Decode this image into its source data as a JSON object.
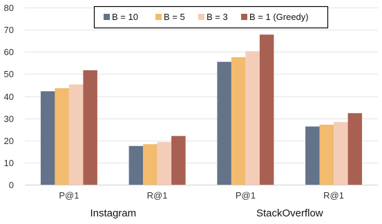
{
  "chart_data": {
    "type": "bar",
    "categories": [
      "P@1",
      "R@1",
      "P@1",
      "R@1"
    ],
    "groups": [
      {
        "label": "Instagram",
        "categories": [
          "P@1",
          "R@1"
        ]
      },
      {
        "label": "StackOverflow",
        "categories": [
          "P@1",
          "R@1"
        ]
      }
    ],
    "series": [
      {
        "name": "B = 10",
        "color": "#637389",
        "values": [
          42.2,
          17.5,
          55.5,
          26.3
        ]
      },
      {
        "name": "B = 5",
        "color": "#f2bb6e",
        "values": [
          43.6,
          18.3,
          57.6,
          27.1
        ]
      },
      {
        "name": "B = 3",
        "color": "#f4cdb9",
        "values": [
          45.3,
          19.3,
          60.3,
          28.3
        ]
      },
      {
        "name": "B = 1 (Greedy)",
        "color": "#a86052",
        "values": [
          51.7,
          22.0,
          67.8,
          32.3
        ]
      }
    ],
    "title": "",
    "xlabel": "",
    "ylabel": "",
    "ylim": [
      0,
      80
    ],
    "yticks": [
      0,
      10,
      20,
      30,
      40,
      50,
      60,
      70,
      80
    ],
    "grid": true,
    "legend_position": "top"
  }
}
